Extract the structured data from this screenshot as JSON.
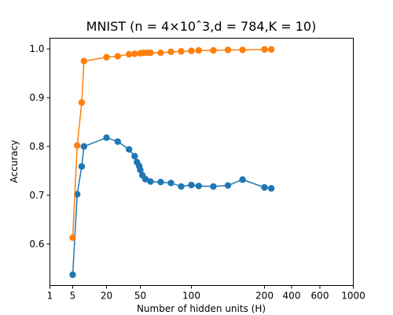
{
  "chart_data": {
    "type": "line",
    "title": "MNIST (n = 4×10ˆ3,d = 784,K = 10)",
    "xlabel": "Number of hidden units (H)",
    "ylabel": "Accuracy",
    "x_tick_values": [
      1,
      5,
      20,
      50,
      100,
      200,
      400,
      600,
      1000
    ],
    "x_tick_labels": [
      "1",
      "5",
      "20",
      "50",
      "100",
      "200",
      "400",
      "600",
      "1000"
    ],
    "y_ticks": [
      0.6,
      0.7,
      0.8,
      0.9,
      1.0
    ],
    "y_tick_labels": [
      "0.6",
      "0.7",
      "0.8",
      "0.9",
      "1.0"
    ],
    "ylim": [
      0.515,
      1.022
    ],
    "grid": false,
    "legend": "none",
    "series": [
      {
        "color": "#1f77b4",
        "x": [
          5,
          7,
          9,
          10,
          20,
          30,
          40,
          45,
          47,
          49,
          50,
          52,
          55,
          60,
          70,
          80,
          90,
          100,
          110,
          130,
          150,
          170,
          200,
          250
        ],
        "y": [
          0.537,
          0.702,
          0.759,
          0.8,
          0.818,
          0.81,
          0.794,
          0.78,
          0.768,
          0.76,
          0.752,
          0.741,
          0.733,
          0.728,
          0.727,
          0.725,
          0.718,
          0.721,
          0.719,
          0.718,
          0.72,
          0.732,
          0.716,
          0.714
        ]
      },
      {
        "color": "#ff7f0e",
        "x": [
          5,
          7,
          9,
          10,
          20,
          30,
          40,
          45,
          50,
          53,
          57,
          60,
          70,
          80,
          90,
          100,
          110,
          130,
          150,
          170,
          200,
          250
        ],
        "y": [
          0.613,
          0.802,
          0.89,
          0.975,
          0.983,
          0.985,
          0.989,
          0.99,
          0.991,
          0.992,
          0.992,
          0.992,
          0.992,
          0.994,
          0.995,
          0.996,
          0.997,
          0.997,
          0.998,
          0.998,
          0.999,
          0.999
        ]
      }
    ]
  }
}
